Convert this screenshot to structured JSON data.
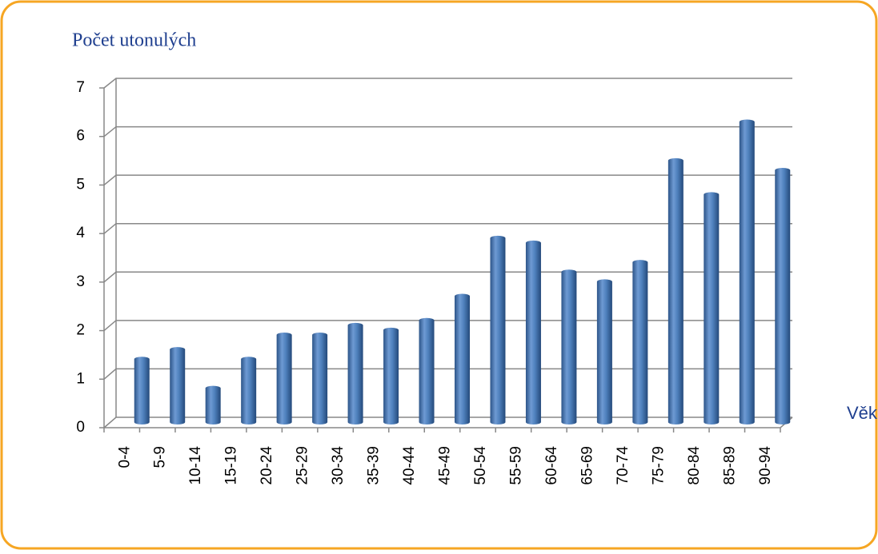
{
  "chart_data": {
    "type": "bar",
    "title": "Počet utonulých",
    "x_label": "Věk",
    "categories": [
      "0-4",
      "5-9",
      "10-14",
      "15-19",
      "20-24",
      "25-29",
      "30-34",
      "35-39",
      "40-44",
      "45-49",
      "50-54",
      "55-59",
      "60-64",
      "65-69",
      "70-74",
      "75-79",
      "80-84",
      "85-89",
      "90-94"
    ],
    "values": [
      1.3,
      1.5,
      0.7,
      1.3,
      1.8,
      1.8,
      2.0,
      1.9,
      2.1,
      2.6,
      3.8,
      3.7,
      3.1,
      2.9,
      3.3,
      5.4,
      4.7,
      6.2,
      5.2
    ],
    "color": "#4f81bd",
    "ylim": [
      0,
      7
    ],
    "yticks": [
      0,
      1,
      2,
      3,
      4,
      5,
      6,
      7
    ],
    "grid": true
  }
}
